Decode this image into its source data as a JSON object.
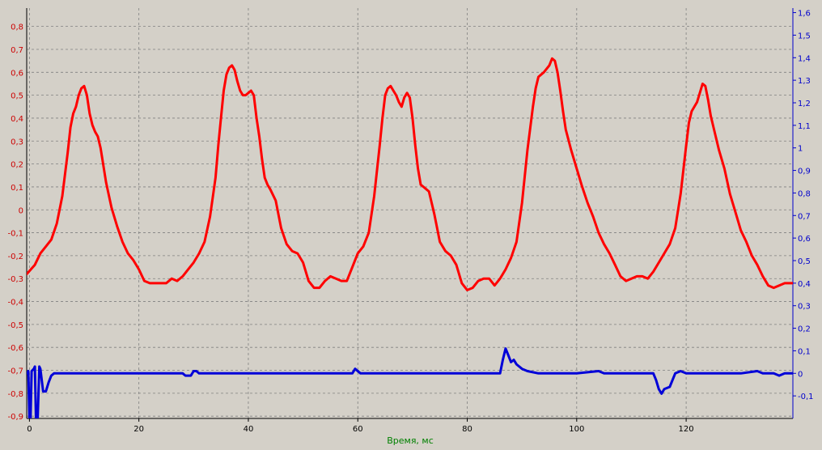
{
  "chart_data": {
    "type": "line",
    "title": "",
    "xlabel": "Время, мс",
    "ylabel": "",
    "y2label": "",
    "xlim": [
      -0.5,
      139.5
    ],
    "ylim": [
      -0.91,
      0.88
    ],
    "y2lim": [
      -0.2,
      1.62
    ],
    "x_ticks": [
      "0",
      "20",
      "40",
      "60",
      "80",
      "100",
      "120"
    ],
    "x_tick_values": [
      0,
      20,
      40,
      60,
      80,
      100,
      120
    ],
    "y_ticks": [
      "-0,9",
      "-0,8",
      "-0,7",
      "-0,6",
      "-0,5",
      "-0,4",
      "-0,3",
      "-0,2",
      "-0,1",
      "0",
      "0,1",
      "0,2",
      "0,3",
      "0,4",
      "0,5",
      "0,6",
      "0,7",
      "0,8"
    ],
    "y_tick_values": [
      -0.9,
      -0.8,
      -0.7,
      -0.6,
      -0.5,
      -0.4,
      -0.3,
      -0.2,
      -0.1,
      0,
      0.1,
      0.2,
      0.3,
      0.4,
      0.5,
      0.6,
      0.7,
      0.8
    ],
    "y2_ticks": [
      "-0,1",
      "0",
      "0,1",
      "0,2",
      "0,3",
      "0,4",
      "0,5",
      "0,6",
      "0,7",
      "0,8",
      "0,9",
      "1",
      "1,1",
      "1,2",
      "1,3",
      "1,4",
      "1,5",
      "1,6"
    ],
    "y2_tick_values": [
      -0.1,
      0,
      0.1,
      0.2,
      0.3,
      0.4,
      0.5,
      0.6,
      0.7,
      0.8,
      0.9,
      1.0,
      1.1,
      1.2,
      1.3,
      1.4,
      1.5,
      1.6
    ],
    "grid": true,
    "colors": {
      "background": "#d4d0c8",
      "grid": "#808080",
      "left_axis": "#cc0000",
      "right_axis": "#0000cc",
      "xlabel": "#008000",
      "series_red": "#ff0000",
      "series_blue": "#0000d8"
    },
    "series": [
      {
        "axis": "left",
        "color": "#ff0000",
        "points": [
          [
            -0.5,
            -0.28
          ],
          [
            1,
            -0.24
          ],
          [
            2,
            -0.19
          ],
          [
            3,
            -0.16
          ],
          [
            4,
            -0.13
          ],
          [
            5,
            -0.06
          ],
          [
            6,
            0.06
          ],
          [
            7,
            0.25
          ],
          [
            7.5,
            0.36
          ],
          [
            8,
            0.42
          ],
          [
            8.5,
            0.45
          ],
          [
            9,
            0.5
          ],
          [
            9.5,
            0.53
          ],
          [
            10,
            0.54
          ],
          [
            10.5,
            0.5
          ],
          [
            11,
            0.42
          ],
          [
            11.5,
            0.37
          ],
          [
            12,
            0.34
          ],
          [
            12.5,
            0.32
          ],
          [
            13,
            0.27
          ],
          [
            14,
            0.12
          ],
          [
            15,
            0.01
          ],
          [
            16,
            -0.07
          ],
          [
            17,
            -0.14
          ],
          [
            18,
            -0.19
          ],
          [
            19,
            -0.22
          ],
          [
            20,
            -0.26
          ],
          [
            21,
            -0.31
          ],
          [
            22,
            -0.32
          ],
          [
            23,
            -0.32
          ],
          [
            24,
            -0.32
          ],
          [
            25,
            -0.32
          ],
          [
            26,
            -0.3
          ],
          [
            27,
            -0.31
          ],
          [
            28,
            -0.29
          ],
          [
            29,
            -0.26
          ],
          [
            30,
            -0.23
          ],
          [
            31,
            -0.19
          ],
          [
            32,
            -0.14
          ],
          [
            33,
            -0.03
          ],
          [
            34,
            0.14
          ],
          [
            34.5,
            0.28
          ],
          [
            35,
            0.4
          ],
          [
            35.5,
            0.52
          ],
          [
            36,
            0.59
          ],
          [
            36.5,
            0.62
          ],
          [
            37,
            0.63
          ],
          [
            37.5,
            0.61
          ],
          [
            38,
            0.56
          ],
          [
            38.5,
            0.52
          ],
          [
            39,
            0.5
          ],
          [
            39.5,
            0.5
          ],
          [
            40,
            0.51
          ],
          [
            40.5,
            0.52
          ],
          [
            41,
            0.5
          ],
          [
            41.5,
            0.4
          ],
          [
            42,
            0.32
          ],
          [
            42.5,
            0.22
          ],
          [
            43,
            0.14
          ],
          [
            43.5,
            0.11
          ],
          [
            44,
            0.09
          ],
          [
            45,
            0.04
          ],
          [
            46,
            -0.08
          ],
          [
            47,
            -0.15
          ],
          [
            48,
            -0.18
          ],
          [
            49,
            -0.19
          ],
          [
            50,
            -0.23
          ],
          [
            51,
            -0.31
          ],
          [
            52,
            -0.34
          ],
          [
            53,
            -0.34
          ],
          [
            54,
            -0.31
          ],
          [
            55,
            -0.29
          ],
          [
            56,
            -0.3
          ],
          [
            57,
            -0.31
          ],
          [
            58,
            -0.31
          ],
          [
            59,
            -0.25
          ],
          [
            60,
            -0.19
          ],
          [
            61,
            -0.16
          ],
          [
            62,
            -0.1
          ],
          [
            63,
            0.06
          ],
          [
            64,
            0.28
          ],
          [
            64.5,
            0.4
          ],
          [
            65,
            0.5
          ],
          [
            65.5,
            0.53
          ],
          [
            66,
            0.54
          ],
          [
            66.5,
            0.52
          ],
          [
            67,
            0.5
          ],
          [
            67.5,
            0.47
          ],
          [
            68,
            0.45
          ],
          [
            68.5,
            0.49
          ],
          [
            69,
            0.51
          ],
          [
            69.5,
            0.49
          ],
          [
            70,
            0.4
          ],
          [
            70.5,
            0.28
          ],
          [
            71,
            0.18
          ],
          [
            71.5,
            0.11
          ],
          [
            72,
            0.1
          ],
          [
            73,
            0.08
          ],
          [
            74,
            -0.02
          ],
          [
            75,
            -0.14
          ],
          [
            76,
            -0.18
          ],
          [
            77,
            -0.2
          ],
          [
            78,
            -0.24
          ],
          [
            79,
            -0.32
          ],
          [
            80,
            -0.35
          ],
          [
            81,
            -0.34
          ],
          [
            82,
            -0.31
          ],
          [
            83,
            -0.3
          ],
          [
            84,
            -0.3
          ],
          [
            85,
            -0.33
          ],
          [
            86,
            -0.3
          ],
          [
            87,
            -0.26
          ],
          [
            88,
            -0.21
          ],
          [
            89,
            -0.14
          ],
          [
            90,
            0.03
          ],
          [
            91,
            0.26
          ],
          [
            92,
            0.45
          ],
          [
            92.5,
            0.53
          ],
          [
            93,
            0.58
          ],
          [
            94,
            0.6
          ],
          [
            95,
            0.63
          ],
          [
            95.5,
            0.66
          ],
          [
            96,
            0.65
          ],
          [
            96.5,
            0.6
          ],
          [
            97,
            0.52
          ],
          [
            97.5,
            0.43
          ],
          [
            98,
            0.35
          ],
          [
            99,
            0.26
          ],
          [
            100,
            0.18
          ],
          [
            101,
            0.1
          ],
          [
            102,
            0.03
          ],
          [
            103,
            -0.03
          ],
          [
            104,
            -0.1
          ],
          [
            105,
            -0.15
          ],
          [
            106,
            -0.19
          ],
          [
            107,
            -0.24
          ],
          [
            108,
            -0.29
          ],
          [
            109,
            -0.31
          ],
          [
            110,
            -0.3
          ],
          [
            111,
            -0.29
          ],
          [
            112,
            -0.29
          ],
          [
            113,
            -0.3
          ],
          [
            114,
            -0.27
          ],
          [
            115,
            -0.23
          ],
          [
            116,
            -0.19
          ],
          [
            117,
            -0.15
          ],
          [
            118,
            -0.08
          ],
          [
            119,
            0.07
          ],
          [
            120,
            0.28
          ],
          [
            120.5,
            0.38
          ],
          [
            121,
            0.43
          ],
          [
            122,
            0.47
          ],
          [
            122.5,
            0.51
          ],
          [
            123,
            0.55
          ],
          [
            123.5,
            0.54
          ],
          [
            124,
            0.48
          ],
          [
            124.5,
            0.41
          ],
          [
            125,
            0.36
          ],
          [
            126,
            0.26
          ],
          [
            127,
            0.18
          ],
          [
            128,
            0.07
          ],
          [
            129,
            -0.01
          ],
          [
            130,
            -0.09
          ],
          [
            131,
            -0.14
          ],
          [
            132,
            -0.2
          ],
          [
            133,
            -0.24
          ],
          [
            134,
            -0.29
          ],
          [
            135,
            -0.33
          ],
          [
            136,
            -0.34
          ],
          [
            137,
            -0.33
          ],
          [
            138,
            -0.32
          ],
          [
            139.5,
            -0.32
          ]
        ]
      },
      {
        "axis": "right",
        "color": "#0000d8",
        "points": [
          [
            -0.5,
            0.0
          ],
          [
            -0.2,
            0.01
          ],
          [
            0,
            -0.21
          ],
          [
            0.2,
            -0.21
          ],
          [
            0.4,
            0.01
          ],
          [
            0.8,
            0.02
          ],
          [
            1.0,
            0.03
          ],
          [
            1.2,
            -0.21
          ],
          [
            1.5,
            -0.21
          ],
          [
            1.8,
            0.03
          ],
          [
            2,
            0.02
          ],
          [
            2.5,
            -0.08
          ],
          [
            3,
            -0.08
          ],
          [
            3.5,
            -0.04
          ],
          [
            4,
            -0.01
          ],
          [
            4.5,
            0.0
          ],
          [
            6,
            0.0
          ],
          [
            10,
            0.0
          ],
          [
            20,
            0.0
          ],
          [
            28,
            0.0
          ],
          [
            28.5,
            -0.01
          ],
          [
            29.5,
            -0.01
          ],
          [
            30,
            0.01
          ],
          [
            30.5,
            0.01
          ],
          [
            31,
            0.0
          ],
          [
            40,
            0.0
          ],
          [
            55,
            0.0
          ],
          [
            59,
            0.0
          ],
          [
            59.5,
            0.02
          ],
          [
            60,
            0.01
          ],
          [
            60.5,
            0.0
          ],
          [
            70,
            0.0
          ],
          [
            85,
            0.0
          ],
          [
            86,
            0.0
          ],
          [
            86.5,
            0.06
          ],
          [
            87,
            0.11
          ],
          [
            87.5,
            0.08
          ],
          [
            88,
            0.05
          ],
          [
            88.5,
            0.06
          ],
          [
            89,
            0.04
          ],
          [
            90,
            0.02
          ],
          [
            91,
            0.01
          ],
          [
            93,
            0.0
          ],
          [
            100,
            0.0
          ],
          [
            104,
            0.01
          ],
          [
            105,
            0.0
          ],
          [
            112,
            0.0
          ],
          [
            114,
            0.0
          ],
          [
            114.5,
            -0.03
          ],
          [
            115,
            -0.07
          ],
          [
            115.5,
            -0.09
          ],
          [
            116,
            -0.07
          ],
          [
            117,
            -0.06
          ],
          [
            118,
            0.0
          ],
          [
            119,
            0.01
          ],
          [
            120,
            0.0
          ],
          [
            130,
            0.0
          ],
          [
            133,
            0.01
          ],
          [
            134,
            0.0
          ],
          [
            136,
            0.0
          ],
          [
            137,
            -0.01
          ],
          [
            138,
            0.0
          ],
          [
            139.5,
            0.0
          ]
        ]
      }
    ]
  }
}
